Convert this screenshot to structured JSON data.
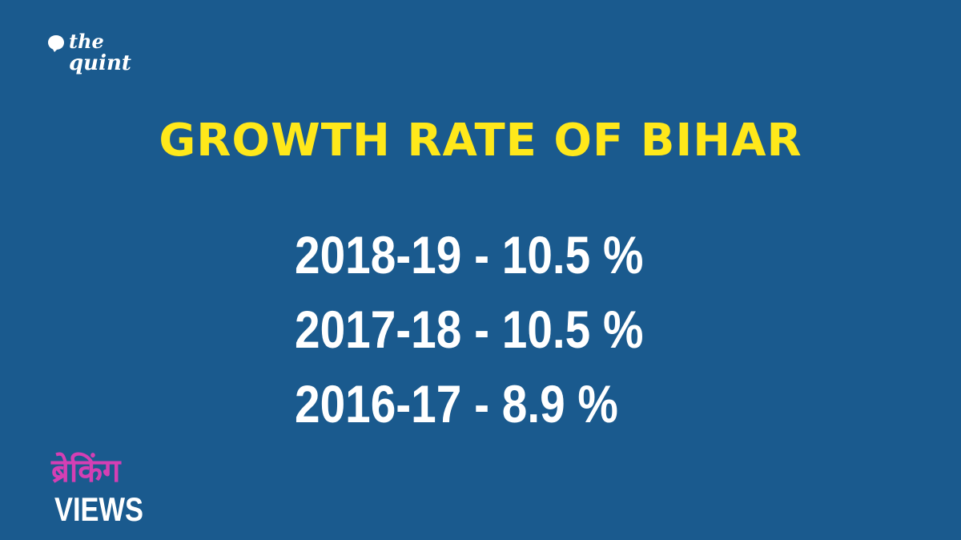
{
  "logo": {
    "line1": "the",
    "line2": "quint"
  },
  "title": "GROWTH RATE OF BIHAR",
  "rates": [
    {
      "text": "2018-19 - 10.5 %"
    },
    {
      "text": "2017-18 - 10.5 %"
    },
    {
      "text": "2016-17 - 8.9 %"
    }
  ],
  "badge": {
    "hindi": "ब्रेकिंग",
    "label": "VIEWS"
  },
  "colors": {
    "background": "#1a5a8e",
    "title": "#ffe81a",
    "text": "#ffffff",
    "badge_hindi": "#d43fb4"
  }
}
